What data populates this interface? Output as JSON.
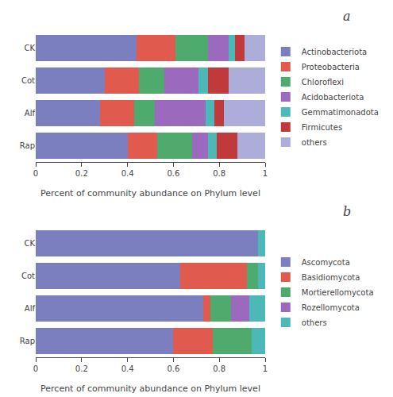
{
  "chart_data": [
    {
      "type": "bar",
      "orientation": "horizontal",
      "stacked": true,
      "title": "a",
      "categories": [
        "CK",
        "Cot",
        "Alf",
        "Rap"
      ],
      "series": [
        {
          "name": "Actinobacteriota",
          "color": "#7b7fbf",
          "values": [
            0.44,
            0.3,
            0.28,
            0.4
          ]
        },
        {
          "name": "Proteobacteria",
          "color": "#e05a4e",
          "values": [
            0.17,
            0.15,
            0.15,
            0.13
          ]
        },
        {
          "name": "Chloroflexi",
          "color": "#4faa6e",
          "values": [
            0.14,
            0.11,
            0.09,
            0.15
          ]
        },
        {
          "name": "Acidobacteriota",
          "color": "#9b6abf",
          "values": [
            0.09,
            0.15,
            0.22,
            0.07
          ]
        },
        {
          "name": "Gemmatimonadota",
          "color": "#4db8b8",
          "values": [
            0.03,
            0.04,
            0.04,
            0.04
          ]
        },
        {
          "name": "Firmicutes",
          "color": "#c0393b",
          "values": [
            0.04,
            0.09,
            0.04,
            0.09
          ]
        },
        {
          "name": "others",
          "color": "#adadd9",
          "values": [
            0.09,
            0.16,
            0.18,
            0.12
          ]
        }
      ],
      "x_label": "Percent of community abundance on Phylum level",
      "xlim": [
        0,
        1
      ],
      "xticks": [
        0,
        0.2,
        0.4,
        0.6,
        0.8,
        1
      ],
      "grid": false,
      "legend": "right"
    },
    {
      "type": "bar",
      "orientation": "horizontal",
      "stacked": true,
      "title": "b",
      "categories": [
        "CK",
        "Cot",
        "Alf",
        "Rap"
      ],
      "series": [
        {
          "name": "Ascomycota",
          "color": "#7b7fbf",
          "values": [
            0.97,
            0.63,
            0.73,
            0.6
          ]
        },
        {
          "name": "Basidiomycota",
          "color": "#e05a4e",
          "values": [
            0.0,
            0.29,
            0.03,
            0.17
          ]
        },
        {
          "name": "Mortierellomycota",
          "color": "#4faa6e",
          "values": [
            0.0,
            0.05,
            0.09,
            0.17
          ]
        },
        {
          "name": "Rozellomycota",
          "color": "#9b6abf",
          "values": [
            0.0,
            0.0,
            0.08,
            0.0
          ]
        },
        {
          "name": "others",
          "color": "#4db8b8",
          "values": [
            0.03,
            0.03,
            0.07,
            0.06
          ]
        }
      ],
      "x_label": "Percent of community abundance on Phylum level",
      "xlim": [
        0,
        1
      ],
      "xticks": [
        0,
        0.2,
        0.4,
        0.6,
        0.8,
        1
      ],
      "grid": false,
      "legend": "right"
    }
  ]
}
